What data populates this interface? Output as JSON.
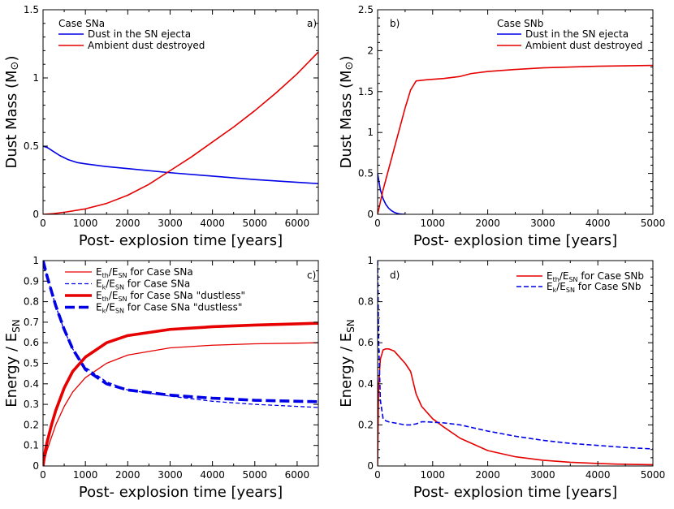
{
  "chart_data": [
    {
      "type": "line",
      "panel": "a)",
      "legend_title": "Case SNa",
      "xlabel": "Post- explosion time [years]",
      "ylabel_main": "Dust Mass (M",
      "ylabel_sym": "⊙",
      "ylabel_end": ")",
      "xlim": [
        0,
        6500
      ],
      "ylim": [
        0,
        1.5
      ],
      "xticks": [
        0,
        1000,
        2000,
        3000,
        4000,
        5000,
        6000
      ],
      "xtick_labels": [
        "0",
        "1000",
        "2000",
        "3000",
        "4000",
        "5000",
        "6000"
      ],
      "yticks": [
        0,
        0.5,
        1,
        1.5
      ],
      "ytick_labels": [
        "0",
        "0.5",
        "1",
        "1.5"
      ],
      "series": [
        {
          "name": "Dust in the SN ejecta",
          "color": "#0000e6",
          "width": 1.6,
          "dash": "",
          "x": [
            0,
            100,
            200,
            300,
            400,
            500,
            600,
            800,
            1000,
            1500,
            2000,
            3000,
            4000,
            5000,
            6000,
            6500
          ],
          "y": [
            0.5,
            0.49,
            0.47,
            0.45,
            0.43,
            0.415,
            0.4,
            0.38,
            0.37,
            0.35,
            0.335,
            0.305,
            0.28,
            0.255,
            0.235,
            0.225
          ]
        },
        {
          "name": "Ambient dust destroyed",
          "color": "#e60000",
          "width": 1.6,
          "dash": "",
          "x": [
            0,
            250,
            500,
            1000,
            1500,
            2000,
            2500,
            3000,
            3500,
            4000,
            4500,
            5000,
            5500,
            6000,
            6500
          ],
          "y": [
            0,
            0.005,
            0.015,
            0.04,
            0.08,
            0.14,
            0.22,
            0.32,
            0.42,
            0.53,
            0.64,
            0.76,
            0.89,
            1.03,
            1.19
          ]
        }
      ]
    },
    {
      "type": "line",
      "panel": "b)",
      "legend_title": "Case SNb",
      "xlabel": "Post- explosion time [years]",
      "ylabel_main": "Dust Mass (M",
      "ylabel_sym": "⊙",
      "ylabel_end": ")",
      "xlim": [
        0,
        5000
      ],
      "ylim": [
        0,
        2.5
      ],
      "xticks": [
        0,
        1000,
        2000,
        3000,
        4000,
        5000
      ],
      "xtick_labels": [
        "0",
        "1000",
        "2000",
        "3000",
        "4000",
        "5000"
      ],
      "yticks": [
        0,
        0.5,
        1,
        1.5,
        2,
        2.5
      ],
      "ytick_labels": [
        "0",
        "0.5",
        "1",
        "1.5",
        "2",
        "2.5"
      ],
      "series": [
        {
          "name": "Dust in the SN ejecta",
          "color": "#0000e6",
          "width": 1.6,
          "dash": "",
          "x": [
            0,
            25,
            50,
            100,
            150,
            200,
            250,
            300,
            350,
            400,
            450,
            500
          ],
          "y": [
            0.5,
            0.4,
            0.3,
            0.19,
            0.12,
            0.075,
            0.045,
            0.025,
            0.012,
            0.005,
            0.002,
            0
          ]
        },
        {
          "name": "Ambient dust destroyed",
          "color": "#e60000",
          "width": 1.6,
          "dash": "",
          "x": [
            0,
            100,
            300,
            500,
            600,
            700,
            900,
            1200,
            1500,
            1700,
            2000,
            2500,
            3000,
            3500,
            4000,
            4500,
            5000
          ],
          "y": [
            0,
            0.3,
            0.8,
            1.3,
            1.52,
            1.63,
            1.645,
            1.66,
            1.685,
            1.72,
            1.745,
            1.77,
            1.79,
            1.8,
            1.81,
            1.815,
            1.82
          ]
        }
      ]
    },
    {
      "type": "line",
      "panel": "c)",
      "xlabel": "Post- explosion time [years]",
      "ylabel_main": "Energy / E",
      "ylabel_sub": "SN",
      "xlim": [
        0,
        6500
      ],
      "ylim": [
        0,
        1
      ],
      "xticks": [
        0,
        1000,
        2000,
        3000,
        4000,
        5000,
        6000
      ],
      "xtick_labels": [
        "0",
        "1000",
        "2000",
        "3000",
        "4000",
        "5000",
        "6000"
      ],
      "yticks": [
        0,
        0.1,
        0.2,
        0.3,
        0.4,
        0.5,
        0.6,
        0.7,
        0.8,
        0.9,
        1
      ],
      "ytick_labels": [
        "0",
        "0.1",
        "0.2",
        "0.3",
        "0.4",
        "0.5",
        "0.6",
        "0.7",
        "0.8",
        "0.9",
        "1"
      ],
      "series": [
        {
          "name": "Eth/ESN for Case SNa",
          "legend_pre": "E",
          "legend_sub1": "th",
          "legend_mid": "/E",
          "legend_sub2": "SN",
          "legend_post": " for Case SNa",
          "color": "#e60000",
          "width": 1.3,
          "dash": "",
          "x": [
            0,
            50,
            100,
            200,
            300,
            500,
            700,
            1000,
            1500,
            2000,
            3000,
            4000,
            5000,
            6000,
            6500
          ],
          "y": [
            0,
            0.04,
            0.08,
            0.14,
            0.2,
            0.29,
            0.36,
            0.43,
            0.5,
            0.54,
            0.575,
            0.588,
            0.595,
            0.598,
            0.6
          ]
        },
        {
          "name": "Ek/ESN for Case SNa",
          "legend_pre": "E",
          "legend_sub1": "k",
          "legend_mid": "/E",
          "legend_sub2": "SN",
          "legend_post": " for Case SNa",
          "color": "#0000e6",
          "width": 1.3,
          "dash": "5,3",
          "x": [
            0,
            50,
            100,
            200,
            300,
            500,
            700,
            1000,
            1500,
            2000,
            3000,
            4000,
            5000,
            6000,
            6500
          ],
          "y": [
            1.0,
            0.96,
            0.92,
            0.85,
            0.78,
            0.66,
            0.57,
            0.48,
            0.41,
            0.37,
            0.34,
            0.315,
            0.3,
            0.29,
            0.285
          ]
        },
        {
          "name": "Eth/ESN for Case SNa \"dustless\"",
          "legend_pre": "E",
          "legend_sub1": "th",
          "legend_mid": "/E",
          "legend_sub2": "SN",
          "legend_post": " for Case SNa \"dustless\"",
          "color": "#e60000",
          "width": 3.6,
          "dash": "",
          "x": [
            0,
            50,
            100,
            200,
            300,
            500,
            700,
            1000,
            1500,
            2000,
            3000,
            4000,
            5000,
            6000,
            6500
          ],
          "y": [
            0,
            0.07,
            0.12,
            0.2,
            0.27,
            0.38,
            0.46,
            0.53,
            0.6,
            0.635,
            0.665,
            0.678,
            0.686,
            0.692,
            0.695
          ]
        },
        {
          "name": "Ek/ESN for Case SNa \"dustless\"",
          "legend_pre": "E",
          "legend_sub1": "k",
          "legend_mid": "/E",
          "legend_sub2": "SN",
          "legend_post": " for Case SNa \"dustless\"",
          "color": "#0000e6",
          "width": 3.6,
          "dash": "12,5",
          "x": [
            0,
            50,
            100,
            200,
            300,
            500,
            700,
            1000,
            1500,
            2000,
            3000,
            4000,
            5000,
            6000,
            6500
          ],
          "y": [
            1.0,
            0.96,
            0.92,
            0.85,
            0.78,
            0.665,
            0.57,
            0.47,
            0.4,
            0.37,
            0.345,
            0.33,
            0.32,
            0.315,
            0.313
          ]
        }
      ]
    },
    {
      "type": "line",
      "panel": "d)",
      "xlabel": "Post- explosion time [years]",
      "ylabel_main": "Energy / E",
      "ylabel_sub": "SN",
      "xlim": [
        0,
        5000
      ],
      "ylim": [
        0,
        1
      ],
      "xticks": [
        0,
        1000,
        2000,
        3000,
        4000,
        5000
      ],
      "xtick_labels": [
        "0",
        "1000",
        "2000",
        "3000",
        "4000",
        "5000"
      ],
      "yticks": [
        0,
        0.2,
        0.4,
        0.6,
        0.8,
        1
      ],
      "ytick_labels": [
        "0",
        "0.2",
        "0.4",
        "0.6",
        "0.8",
        "1"
      ],
      "series": [
        {
          "name": "Eth/ESN for Case SNb",
          "legend_pre": "E",
          "legend_sub1": "th",
          "legend_mid": "/E",
          "legend_sub2": "SN",
          "legend_post": " for Case SNb",
          "color": "#e60000",
          "width": 1.6,
          "dash": "",
          "x": [
            0,
            20,
            50,
            100,
            150,
            200,
            300,
            400,
            500,
            600,
            700,
            800,
            1000,
            1200,
            1500,
            2000,
            2500,
            3000,
            3500,
            4000,
            4500,
            5000
          ],
          "y": [
            0,
            0.4,
            0.52,
            0.565,
            0.57,
            0.57,
            0.56,
            0.53,
            0.5,
            0.46,
            0.35,
            0.29,
            0.23,
            0.19,
            0.135,
            0.075,
            0.045,
            0.028,
            0.018,
            0.012,
            0.008,
            0.006
          ]
        },
        {
          "name": "Ek/ESN for Case SNb",
          "legend_pre": "E",
          "legend_sub1": "k",
          "legend_mid": "/E",
          "legend_sub2": "SN",
          "legend_post": " for Case SNb",
          "color": "#0000e6",
          "width": 1.6,
          "dash": "6,3",
          "x": [
            0,
            20,
            50,
            100,
            150,
            200,
            300,
            500,
            600,
            700,
            800,
            900,
            1000,
            1200,
            1500,
            2000,
            2500,
            3000,
            3500,
            4000,
            4500,
            5000
          ],
          "y": [
            1.0,
            0.6,
            0.32,
            0.23,
            0.22,
            0.215,
            0.21,
            0.2,
            0.2,
            0.205,
            0.215,
            0.215,
            0.213,
            0.21,
            0.2,
            0.17,
            0.145,
            0.125,
            0.11,
            0.1,
            0.09,
            0.083
          ]
        }
      ]
    }
  ]
}
